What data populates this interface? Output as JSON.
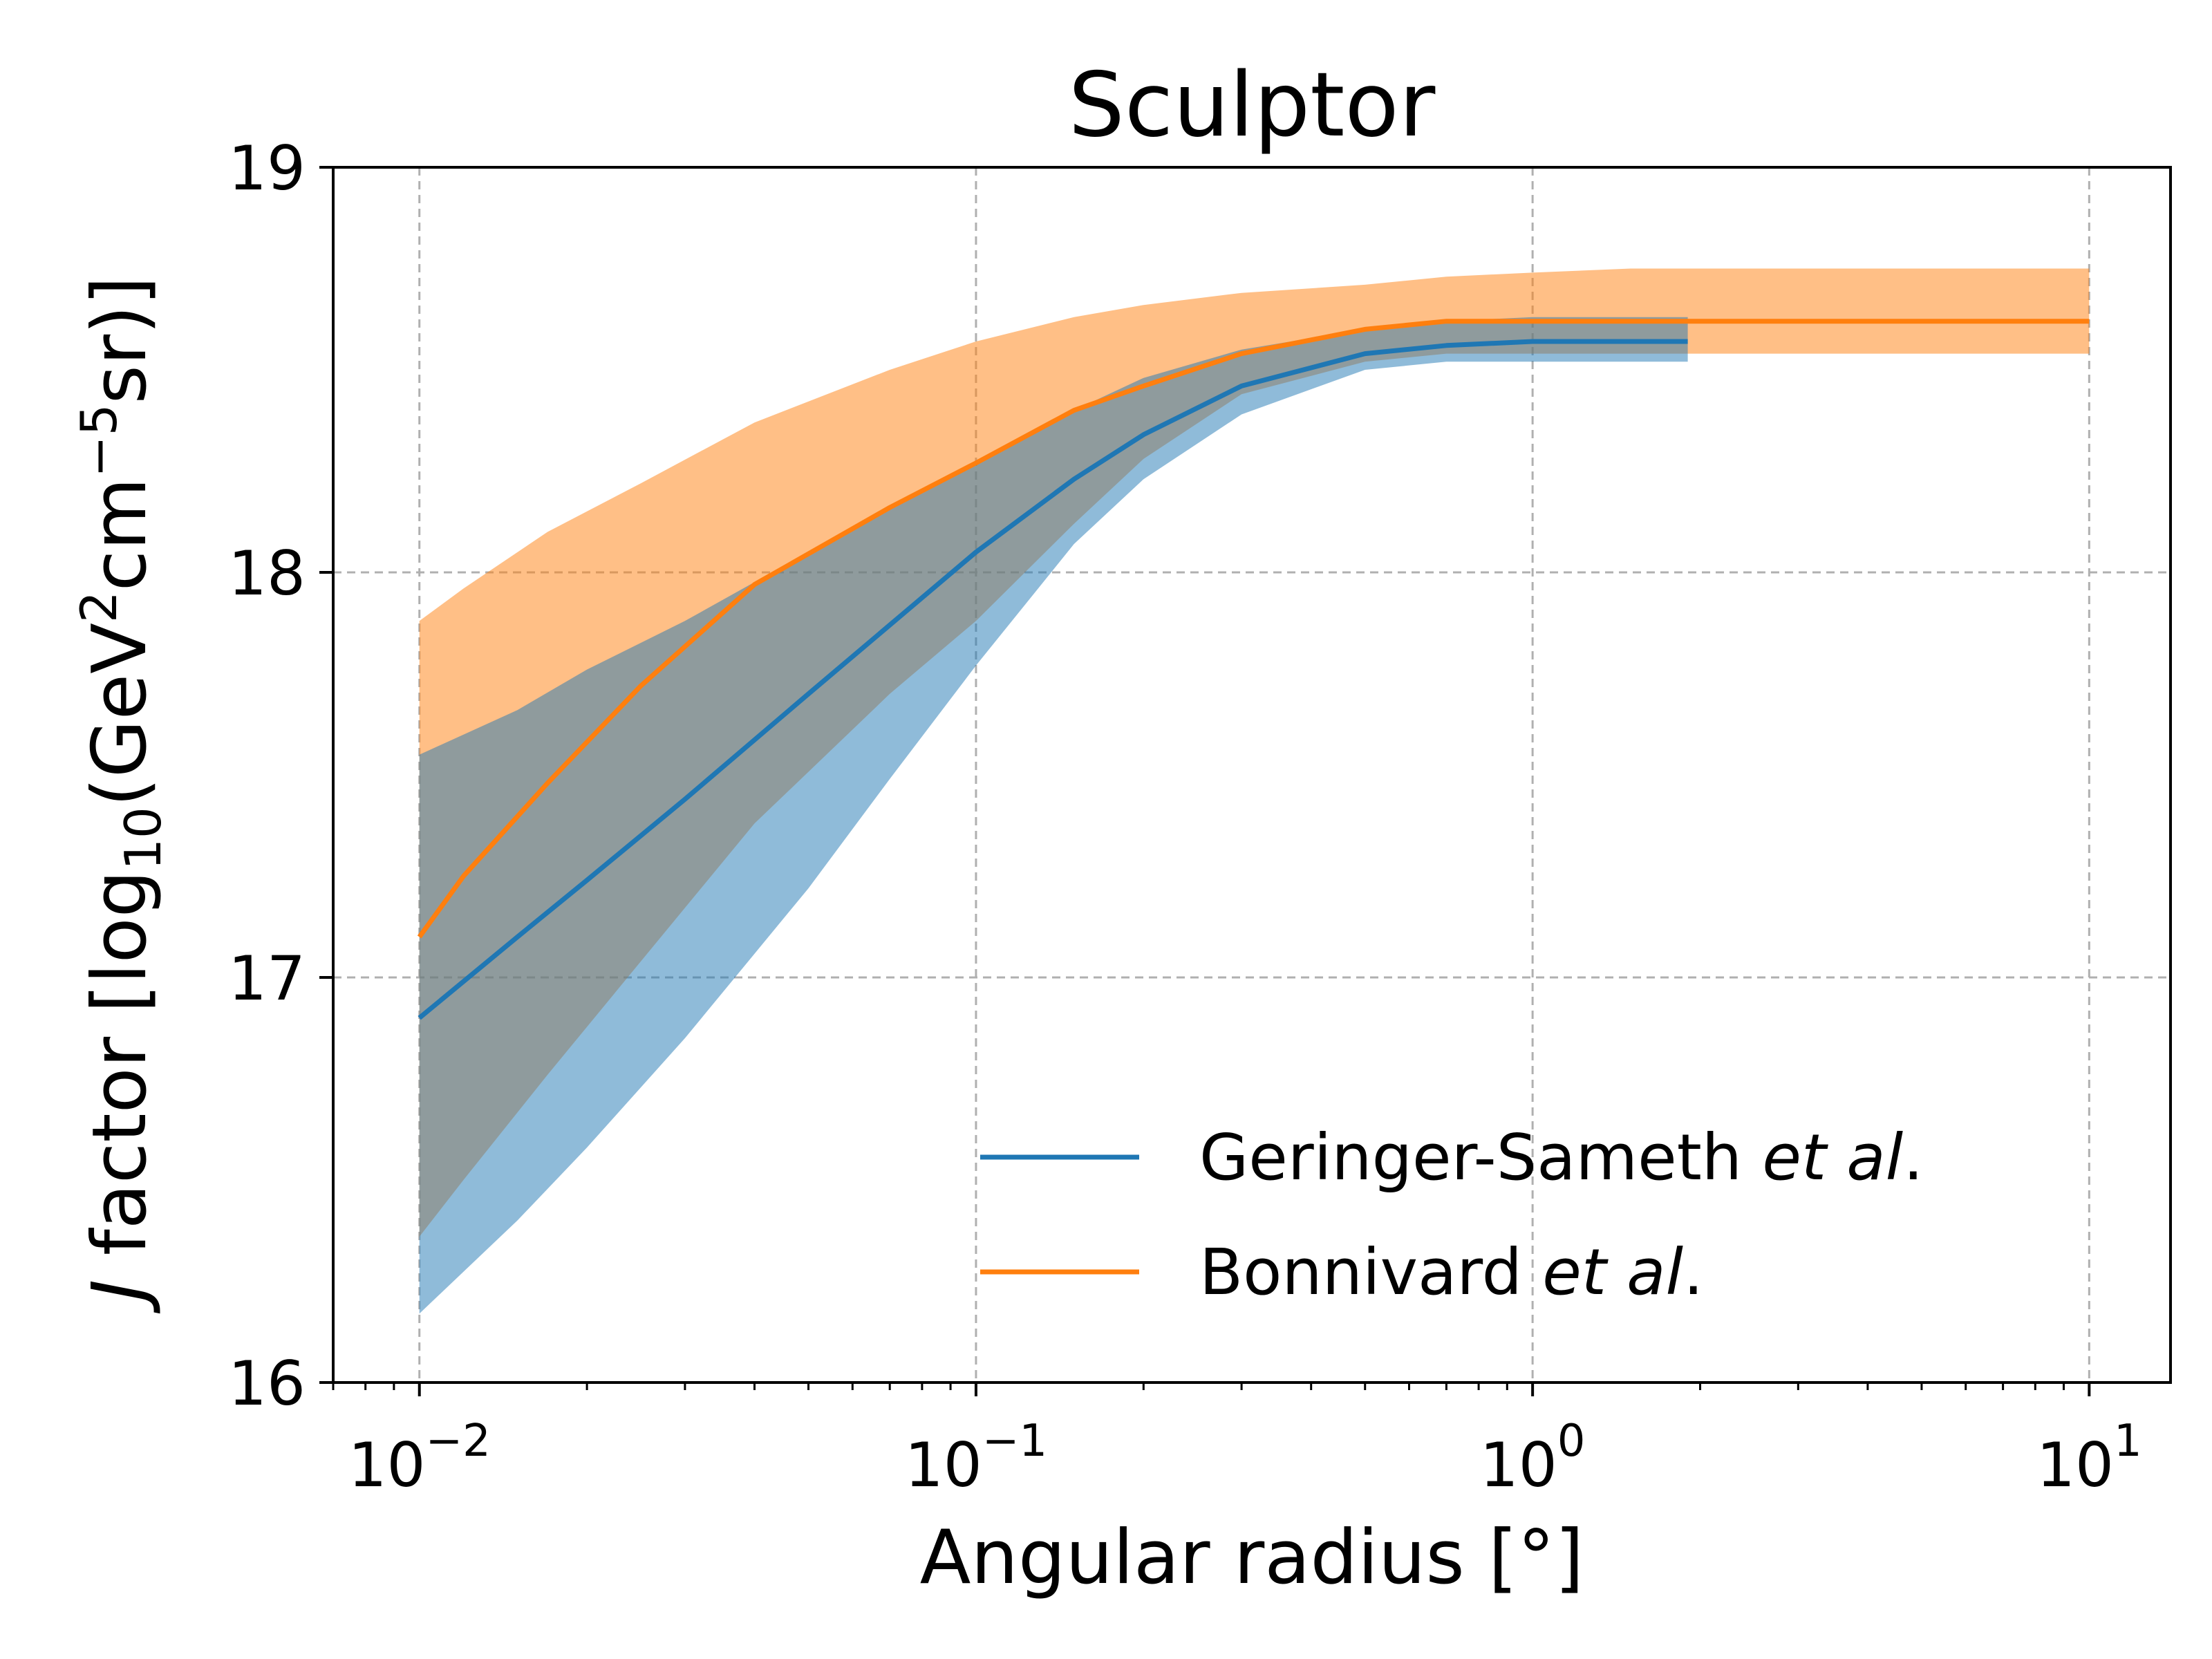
{
  "chart_data": {
    "type": "line",
    "title": "Sculptor",
    "xlabel": "Angular radius [°]",
    "ylabel": {
      "italic_part": "J",
      "prefix": " factor [log",
      "sub": "10",
      "mid": "(GeV",
      "sup2": "2",
      "cm": "cm",
      "sup5": "−5",
      "suffix": "sr)]"
    },
    "x_scale": "log",
    "xlim": [
      0.007,
      14
    ],
    "ylim": [
      16,
      19
    ],
    "x_ticks": [
      {
        "value": 0.01,
        "base": "10",
        "exp": "−2"
      },
      {
        "value": 0.1,
        "base": "10",
        "exp": "−1"
      },
      {
        "value": 1,
        "base": "10",
        "exp": "0"
      },
      {
        "value": 10,
        "base": "10",
        "exp": "1"
      }
    ],
    "y_ticks": [
      {
        "value": 16,
        "label": "16"
      },
      {
        "value": 17,
        "label": "17"
      },
      {
        "value": 18,
        "label": "18"
      },
      {
        "value": 19,
        "label": "19"
      }
    ],
    "grid": true,
    "legend_position": "lower-right",
    "colors": {
      "geringer": "#1f77b4",
      "bonnivard": "#ff7f0e",
      "geringer_band": "#1f77b4",
      "bonnivard_band": "#ff7f0e"
    },
    "series": [
      {
        "name": "Geringer-Sameth et al.",
        "legend": {
          "plain": "Geringer-Sameth ",
          "italic": "et al",
          "tail": "."
        },
        "color": "#1f77b4",
        "x": [
          0.01,
          0.015,
          0.02,
          0.03,
          0.05,
          0.07,
          0.1,
          0.15,
          0.2,
          0.3,
          0.5,
          0.7,
          1.0,
          1.5,
          1.9
        ],
        "y": [
          16.9,
          17.1,
          17.24,
          17.44,
          17.7,
          17.87,
          18.05,
          18.23,
          18.34,
          18.46,
          18.54,
          18.56,
          18.57,
          18.57,
          18.57
        ],
        "band_upper": [
          17.55,
          17.66,
          17.76,
          17.88,
          18.05,
          18.16,
          18.27,
          18.4,
          18.48,
          18.55,
          18.6,
          18.62,
          18.63,
          18.63,
          18.63
        ],
        "band_lower": [
          16.17,
          16.4,
          16.58,
          16.85,
          17.22,
          17.49,
          17.77,
          18.07,
          18.23,
          18.39,
          18.5,
          18.52,
          18.52,
          18.52,
          18.52
        ]
      },
      {
        "name": "Bonnivard et al.",
        "legend": {
          "plain": "Bonnivard ",
          "italic": "et al",
          "tail": "."
        },
        "color": "#ff7f0e",
        "x": [
          0.01,
          0.012,
          0.017,
          0.025,
          0.04,
          0.07,
          0.1,
          0.15,
          0.2,
          0.3,
          0.5,
          0.7,
          1.0,
          1.5,
          2.5,
          5,
          10
        ],
        "y": [
          17.1,
          17.25,
          17.48,
          17.72,
          17.97,
          18.16,
          18.27,
          18.4,
          18.46,
          18.54,
          18.6,
          18.62,
          18.62,
          18.62,
          18.62,
          18.62,
          18.62
        ],
        "band_upper": [
          17.88,
          17.96,
          18.1,
          18.22,
          18.37,
          18.5,
          18.57,
          18.63,
          18.66,
          18.69,
          18.71,
          18.73,
          18.74,
          18.75,
          18.75,
          18.75,
          18.75
        ],
        "band_lower": [
          16.36,
          16.5,
          16.76,
          17.04,
          17.38,
          17.7,
          17.88,
          18.12,
          18.28,
          18.44,
          18.52,
          18.54,
          18.54,
          18.54,
          18.54,
          18.54,
          18.54
        ]
      }
    ]
  }
}
